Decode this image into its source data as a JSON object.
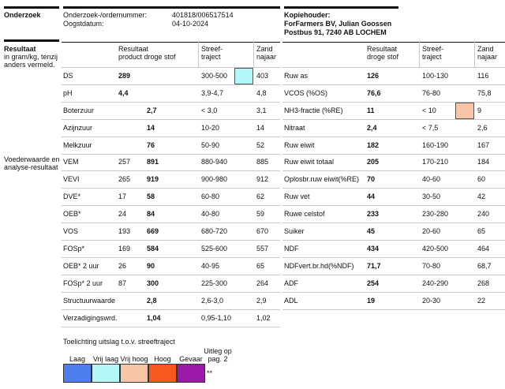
{
  "header": {
    "section": "Onderzoek",
    "order_label": "Onderzoek-/ordernummer:",
    "order_number": "401818/006517514",
    "date_label": "Oogstdatum:",
    "date": "04-10-2024",
    "copy_label": "Kopiehouder:",
    "copy_name": "ForFarmers BV, Julian Goossen",
    "copy_address": "Postbus 91, 7240 AB  LOCHEM"
  },
  "sidebar": {
    "title": "Resultaat",
    "note": "in gram/kg, tenzij anders vermeld.",
    "section2": "Voederwaarde en analyse-resultaat"
  },
  "left_table": {
    "headers": {
      "result": "Resultaat",
      "result_sub": "product droge stof",
      "target": "Streef-traject",
      "zand": "Zand najaar"
    },
    "rows": [
      {
        "name": "DS",
        "product": "289",
        "target": "300-500",
        "flag": 1,
        "zand": "403"
      },
      {
        "name": "pH",
        "product": "4,4",
        "target": "3,9-4,7",
        "zand": "4,8"
      },
      {
        "name": "Boterzuur",
        "ds": "2,7",
        "target": "< 3,0",
        "zand": "3,1"
      },
      {
        "name": "Azijnzuur",
        "ds": "14",
        "target": "10-20",
        "zand": "14"
      },
      {
        "name": "Melkzuur",
        "ds": "76",
        "target": "50-90",
        "zand": "52"
      },
      {
        "name": "VEM",
        "product": "257",
        "ds": "891",
        "target": "880-940",
        "zand": "885"
      },
      {
        "name": "VEVI",
        "product": "265",
        "ds": "919",
        "target": "900-980",
        "zand": "912"
      },
      {
        "name": "DVE*",
        "product": "17",
        "ds": "58",
        "target": "60-80",
        "zand": "62"
      },
      {
        "name": "OEB*",
        "product": "24",
        "ds": "84",
        "target": "40-80",
        "zand": "59"
      },
      {
        "name": "VOS",
        "product": "193",
        "ds": "669",
        "target": "680-720",
        "zand": "670"
      },
      {
        "name": "FOSp*",
        "product": "169",
        "ds": "584",
        "target": "525-600",
        "zand": "557"
      },
      {
        "name": "OEB* 2 uur",
        "product": "26",
        "ds": "90",
        "target": "40-95",
        "zand": "65"
      },
      {
        "name": "FOSp* 2 uur",
        "product": "87",
        "ds": "300",
        "target": "225-300",
        "zand": "264"
      },
      {
        "name": "Structuurwaarde",
        "ds": "2,8",
        "target": "2,6-3,0",
        "zand": "2,9"
      },
      {
        "name": "Verzadigingswrd.",
        "ds": "1,04",
        "target": "0,95-1,10",
        "zand": "1,02"
      }
    ]
  },
  "right_table": {
    "headers": {
      "result": "Resultaat droge stof",
      "target": "Streef-traject",
      "zand": "Zand najaar"
    },
    "rows": [
      {
        "name": "Ruw as",
        "ds": "126",
        "target": "100-130",
        "zand": "116"
      },
      {
        "name": "VCOS (%OS)",
        "ds": "76,6",
        "target": "76-80",
        "zand": "75,8"
      },
      {
        "name": "NH3-fractie (%RE)",
        "ds": "11",
        "target": "< 10",
        "flag": 2,
        "zand": "9"
      },
      {
        "name": "Nitraat",
        "ds": "2,4",
        "target": "< 7,5",
        "zand": "2,6"
      },
      {
        "name": "Ruw eiwit",
        "ds": "182",
        "target": "160-190",
        "zand": "167"
      },
      {
        "name": "Ruw eiwit totaal",
        "ds": "205",
        "target": "170-210",
        "zand": "184"
      },
      {
        "name": "Oplosbr.ruw eiwit(%RE)",
        "ds": "70",
        "target": "40-60",
        "zand": "60"
      },
      {
        "name": "Ruw vet",
        "ds": "44",
        "target": "30-50",
        "zand": "42"
      },
      {
        "name": "Ruwe celstof",
        "ds": "233",
        "target": "230-280",
        "zand": "240"
      },
      {
        "name": "Suiker",
        "ds": "45",
        "target": "20-60",
        "zand": "65"
      },
      {
        "name": "NDF",
        "ds": "434",
        "target": "420-500",
        "zand": "464"
      },
      {
        "name": "NDFvert.br.hd(%NDF)",
        "ds": "71,7",
        "target": "70-80",
        "zand": "68,7"
      },
      {
        "name": "ADF",
        "ds": "254",
        "target": "240-290",
        "zand": "268"
      },
      {
        "name": "ADL",
        "ds": "19",
        "target": "20-30",
        "zand": "22"
      }
    ]
  },
  "legend": {
    "title": "Toelichting uitslag t.o.v. streeftraject",
    "items": [
      {
        "label": "Laag",
        "color": "#4d80ee"
      },
      {
        "label": "Vrij laag",
        "color": "#b5f6f6"
      },
      {
        "label": "Vrij hoog",
        "color": "#f9c5a7"
      },
      {
        "label": "Hoog",
        "color": "#f7581f"
      },
      {
        "label": "Gevaar",
        "color": "#9b1ba8"
      }
    ],
    "note": "Uitleg op pag. 2",
    "mark": "**"
  }
}
